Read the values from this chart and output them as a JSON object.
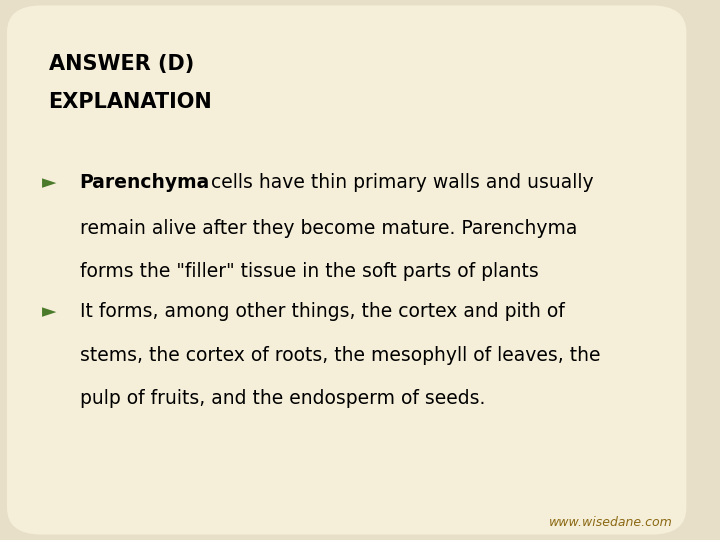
{
  "background_color": "#f5eed8",
  "outer_bg": "#e8dfc8",
  "title_line1": "ANSWER (D)",
  "title_line2": "EXPLANATION",
  "title_fontsize": 15,
  "title_color": "#000000",
  "bullet_color": "#4a7a2a",
  "text_color": "#000000",
  "body_fontsize": 13.5,
  "bullet1_bold_text": "Parenchyma",
  "bullet1_rest": " cells have thin primary walls and usually",
  "bullet1_line2": "remain alive after they become mature. Parenchyma",
  "bullet1_line3": "forms the \"filler\" tissue in the soft parts of plants",
  "bullet2_line1": "It forms, among other things, the cortex and pith of",
  "bullet2_line2": "stems, the cortex of roots, the mesophyll of leaves, the",
  "bullet2_line3": "pulp of fruits, and the endosperm of seeds.",
  "footer_text": "www.wisedane.com",
  "footer_color": "#8B6914",
  "footer_fontsize": 9
}
